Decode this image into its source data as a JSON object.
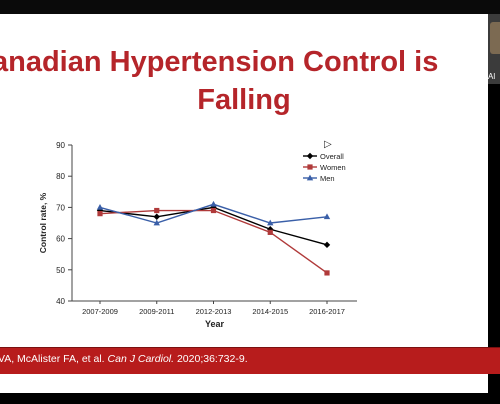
{
  "slide": {
    "title_line1": "anadian Hypertension Control is",
    "title_line2": "Falling"
  },
  "citation": {
    "text": "VA, McAlister FA, et al. ",
    "journal": "Can J Cardiol.",
    "ref": " 2020;36:732-9."
  },
  "participant": {
    "label": "Al"
  },
  "chart_data": {
    "type": "line",
    "categories": [
      "2007-2009",
      "2009-2011",
      "2012-2013",
      "2014-2015",
      "2016-2017"
    ],
    "xlabel": "Year",
    "ylabel": "Control rate, %",
    "ylim": [
      40,
      90
    ],
    "yticks": [
      40,
      50,
      60,
      70,
      80,
      90
    ],
    "legend": "top-right",
    "series": [
      {
        "name": "Overall",
        "values": [
          69,
          67,
          70,
          63,
          58
        ],
        "color": "#000000",
        "marker": "diamond"
      },
      {
        "name": "Women",
        "values": [
          68,
          69,
          69,
          62,
          49
        ],
        "color": "#b03a3a",
        "marker": "square"
      },
      {
        "name": "Men",
        "values": [
          70,
          65,
          71,
          65,
          67
        ],
        "color": "#3a5fa8",
        "marker": "triangle"
      }
    ]
  }
}
